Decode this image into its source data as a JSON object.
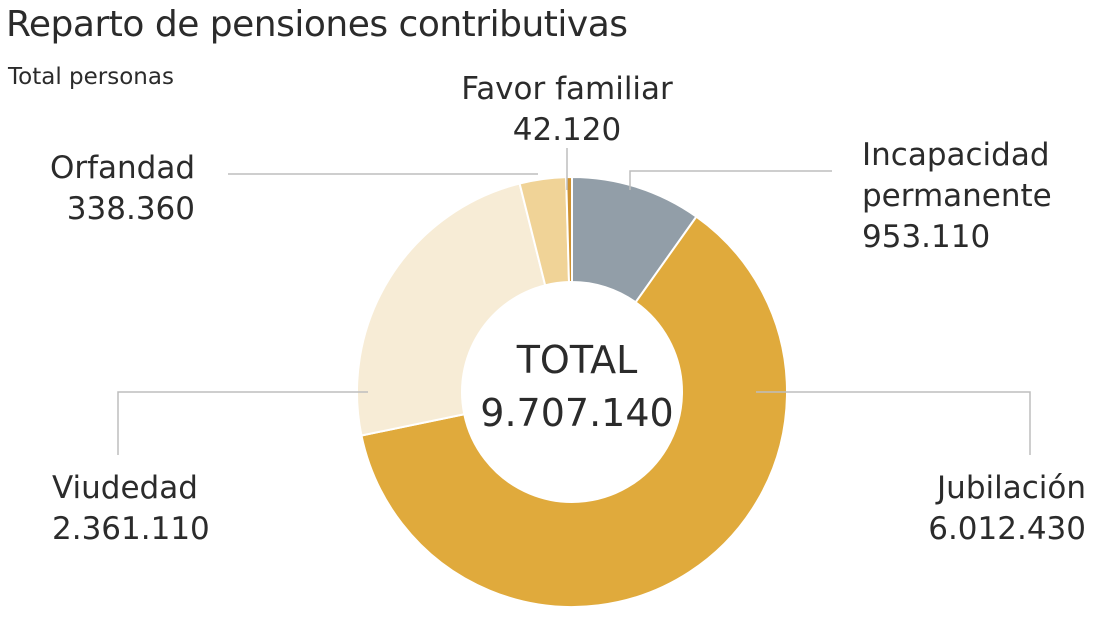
{
  "chart_data": {
    "type": "pie",
    "title": "Reparto de pensiones contributivas",
    "subtitle": "Total personas",
    "center_label": "TOTAL",
    "total": "9.707.140",
    "total_value": 9707140,
    "slices": [
      {
        "name": "Incapacidad permanente",
        "label_lines": [
          "Incapacidad",
          "permanente"
        ],
        "value": 953110,
        "value_text": "953.110",
        "color": "#929ea8"
      },
      {
        "name": "Jubilación",
        "label_lines": [
          "Jubilación"
        ],
        "value": 6012430,
        "value_text": "6.012.430",
        "color": "#e0aa3c"
      },
      {
        "name": "Viudedad",
        "label_lines": [
          "Viudedad"
        ],
        "value": 2361110,
        "value_text": "2.361.110",
        "color": "#f7ecd6"
      },
      {
        "name": "Orfandad",
        "label_lines": [
          "Orfandad"
        ],
        "value": 338360,
        "value_text": "338.360",
        "color": "#f0d397"
      },
      {
        "name": "Favor familiar",
        "label_lines": [
          "Favor familiar"
        ],
        "value": 42120,
        "value_text": "42.120",
        "color": "#cd9232"
      }
    ]
  }
}
